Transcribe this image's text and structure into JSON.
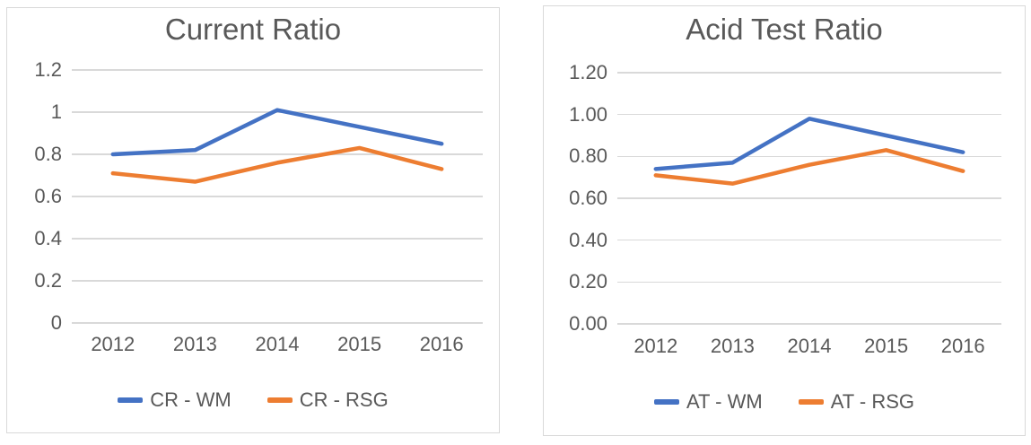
{
  "page": {
    "background": "#FFFFFF",
    "text_color": "#595959",
    "gridline_color": "#D9D9D9",
    "panel_border_color": "#D9D9D9"
  },
  "chart_data": [
    {
      "type": "line",
      "title": "Current Ratio",
      "categories": [
        "2012",
        "2013",
        "2014",
        "2015",
        "2016"
      ],
      "series": [
        {
          "name": "CR - WM",
          "color": "#4472C4",
          "values": [
            0.8,
            0.82,
            1.01,
            0.93,
            0.85
          ]
        },
        {
          "name": "CR - RSG",
          "color": "#ED7D31",
          "values": [
            0.71,
            0.67,
            0.76,
            0.83,
            0.73
          ]
        }
      ],
      "xlabel": "",
      "ylabel": "",
      "ylim": [
        0,
        1.2
      ],
      "y_ticks": [
        {
          "label": "1.2",
          "value": 1.2
        },
        {
          "label": "1",
          "value": 1.0
        },
        {
          "label": "0.8",
          "value": 0.8
        },
        {
          "label": "0.6",
          "value": 0.6
        },
        {
          "label": "0.4",
          "value": 0.4
        },
        {
          "label": "0.2",
          "value": 0.2
        },
        {
          "label": "0",
          "value": 0.0
        }
      ],
      "grid": true,
      "legend_position": "bottom",
      "text_color": "#595959",
      "gridline_color": "#D9D9D9"
    },
    {
      "type": "line",
      "title": "Acid Test Ratio",
      "categories": [
        "2012",
        "2013",
        "2014",
        "2015",
        "2016"
      ],
      "series": [
        {
          "name": "AT - WM",
          "color": "#4472C4",
          "values": [
            0.74,
            0.77,
            0.98,
            0.9,
            0.82
          ]
        },
        {
          "name": "AT - RSG",
          "color": "#ED7D31",
          "values": [
            0.71,
            0.67,
            0.76,
            0.83,
            0.73
          ]
        }
      ],
      "xlabel": "",
      "ylabel": "",
      "ylim": [
        0,
        1.2
      ],
      "y_ticks": [
        {
          "label": "1.20",
          "value": 1.2
        },
        {
          "label": "1.00",
          "value": 1.0
        },
        {
          "label": "0.80",
          "value": 0.8
        },
        {
          "label": "0.60",
          "value": 0.6
        },
        {
          "label": "0.40",
          "value": 0.4
        },
        {
          "label": "0.20",
          "value": 0.2
        },
        {
          "label": "0.00",
          "value": 0.0
        }
      ],
      "grid": true,
      "legend_position": "bottom",
      "text_color": "#595959",
      "gridline_color": "#D9D9D9"
    }
  ]
}
